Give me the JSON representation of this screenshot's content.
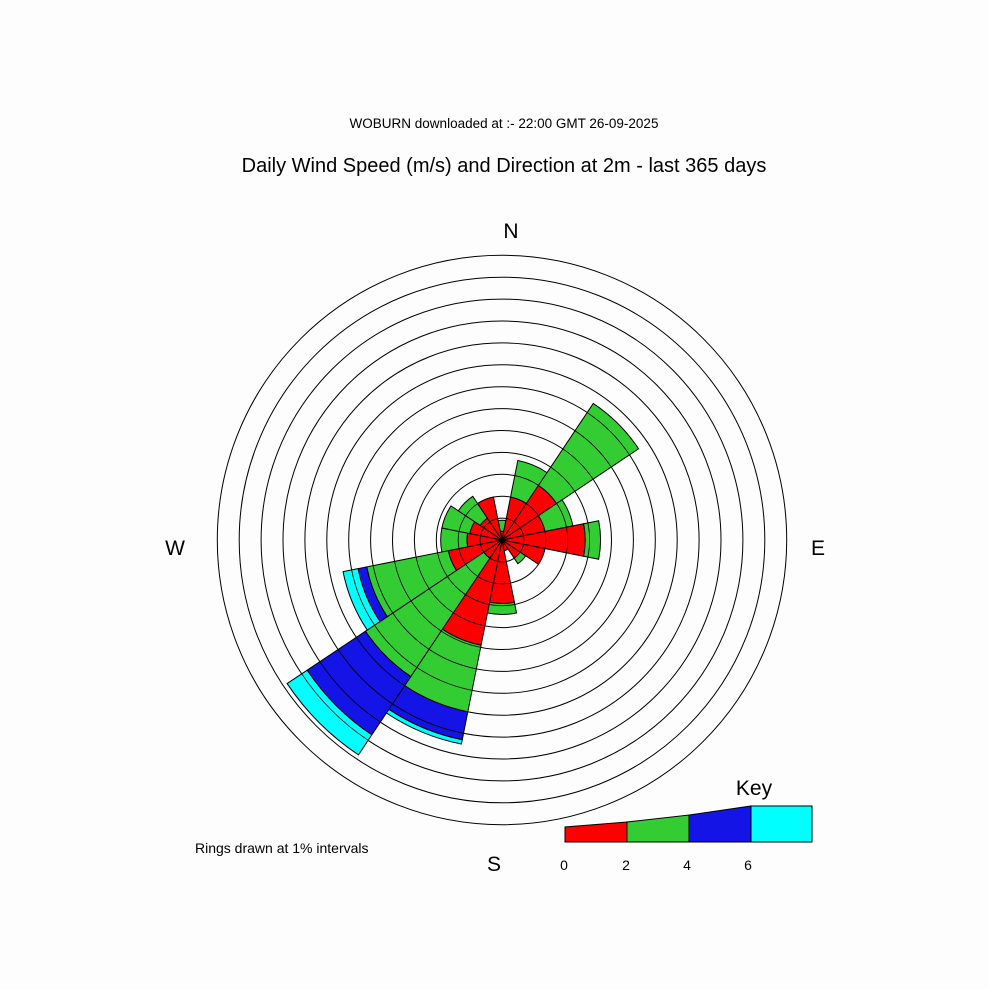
{
  "subtitle": "WOBURN downloaded at :- 22:00 GMT 26-09-2025",
  "title": "Daily Wind Speed (m/s) and Direction at 2m - last 365 days",
  "compass": {
    "n": "N",
    "e": "E",
    "s": "S",
    "w": "W"
  },
  "rings_note": "Rings drawn at 1% intervals",
  "key": {
    "title": "Key",
    "tick_labels": [
      "0",
      "2",
      "4",
      "6"
    ]
  },
  "chart_data": {
    "type": "wind-rose",
    "ring_interval_percent": 1,
    "ring_count": 13,
    "speed_bins": [
      {
        "range": "0-2",
        "color": "#ff0000"
      },
      {
        "range": "2-4",
        "color": "#33cc33"
      },
      {
        "range": "4-6",
        "color": "#1414e6"
      },
      {
        "range": "6+",
        "color": "#00ffff"
      }
    ],
    "directions": [
      {
        "dir": "N",
        "center_deg": 0,
        "cumulative_percent": [
          0.4,
          0.9,
          0.9,
          0.9
        ]
      },
      {
        "dir": "NNE",
        "center_deg": 22.5,
        "cumulative_percent": [
          2.0,
          3.7,
          3.7,
          3.7
        ]
      },
      {
        "dir": "NE",
        "center_deg": 45,
        "cumulative_percent": [
          3.0,
          7.5,
          7.5,
          7.5
        ]
      },
      {
        "dir": "ENE",
        "center_deg": 67.5,
        "cumulative_percent": [
          2.0,
          3.3,
          3.3,
          3.3
        ]
      },
      {
        "dir": "E",
        "center_deg": 90,
        "cumulative_percent": [
          3.8,
          4.5,
          4.5,
          4.5
        ]
      },
      {
        "dir": "ESE",
        "center_deg": 112.5,
        "cumulative_percent": [
          2.0,
          2.0,
          2.0,
          2.0
        ]
      },
      {
        "dir": "SE",
        "center_deg": 135,
        "cumulative_percent": [
          1.0,
          1.3,
          1.3,
          1.3
        ]
      },
      {
        "dir": "SSE",
        "center_deg": 157.5,
        "cumulative_percent": [
          0.5,
          0.5,
          0.5,
          0.5
        ]
      },
      {
        "dir": "S",
        "center_deg": 180,
        "cumulative_percent": [
          2.9,
          3.4,
          3.4,
          3.4
        ]
      },
      {
        "dir": "SSW",
        "center_deg": 202.5,
        "cumulative_percent": [
          4.9,
          8.0,
          9.3,
          9.5
        ]
      },
      {
        "dir": "SW",
        "center_deg": 225,
        "cumulative_percent": [
          1.0,
          7.5,
          10.7,
          11.8
        ]
      },
      {
        "dir": "WSW",
        "center_deg": 247.5,
        "cumulative_percent": [
          2.5,
          6.3,
          6.7,
          7.4
        ]
      },
      {
        "dir": "W",
        "center_deg": 270,
        "cumulative_percent": [
          1.6,
          2.8,
          2.8,
          2.8
        ]
      },
      {
        "dir": "WNW",
        "center_deg": 292.5,
        "cumulative_percent": [
          1.5,
          2.8,
          2.8,
          2.8
        ]
      },
      {
        "dir": "NW",
        "center_deg": 315,
        "cumulative_percent": [
          1.2,
          2.4,
          2.4,
          2.4
        ]
      },
      {
        "dir": "NNW",
        "center_deg": 337.5,
        "cumulative_percent": [
          2.0,
          2.0,
          2.0,
          2.0
        ]
      }
    ]
  }
}
